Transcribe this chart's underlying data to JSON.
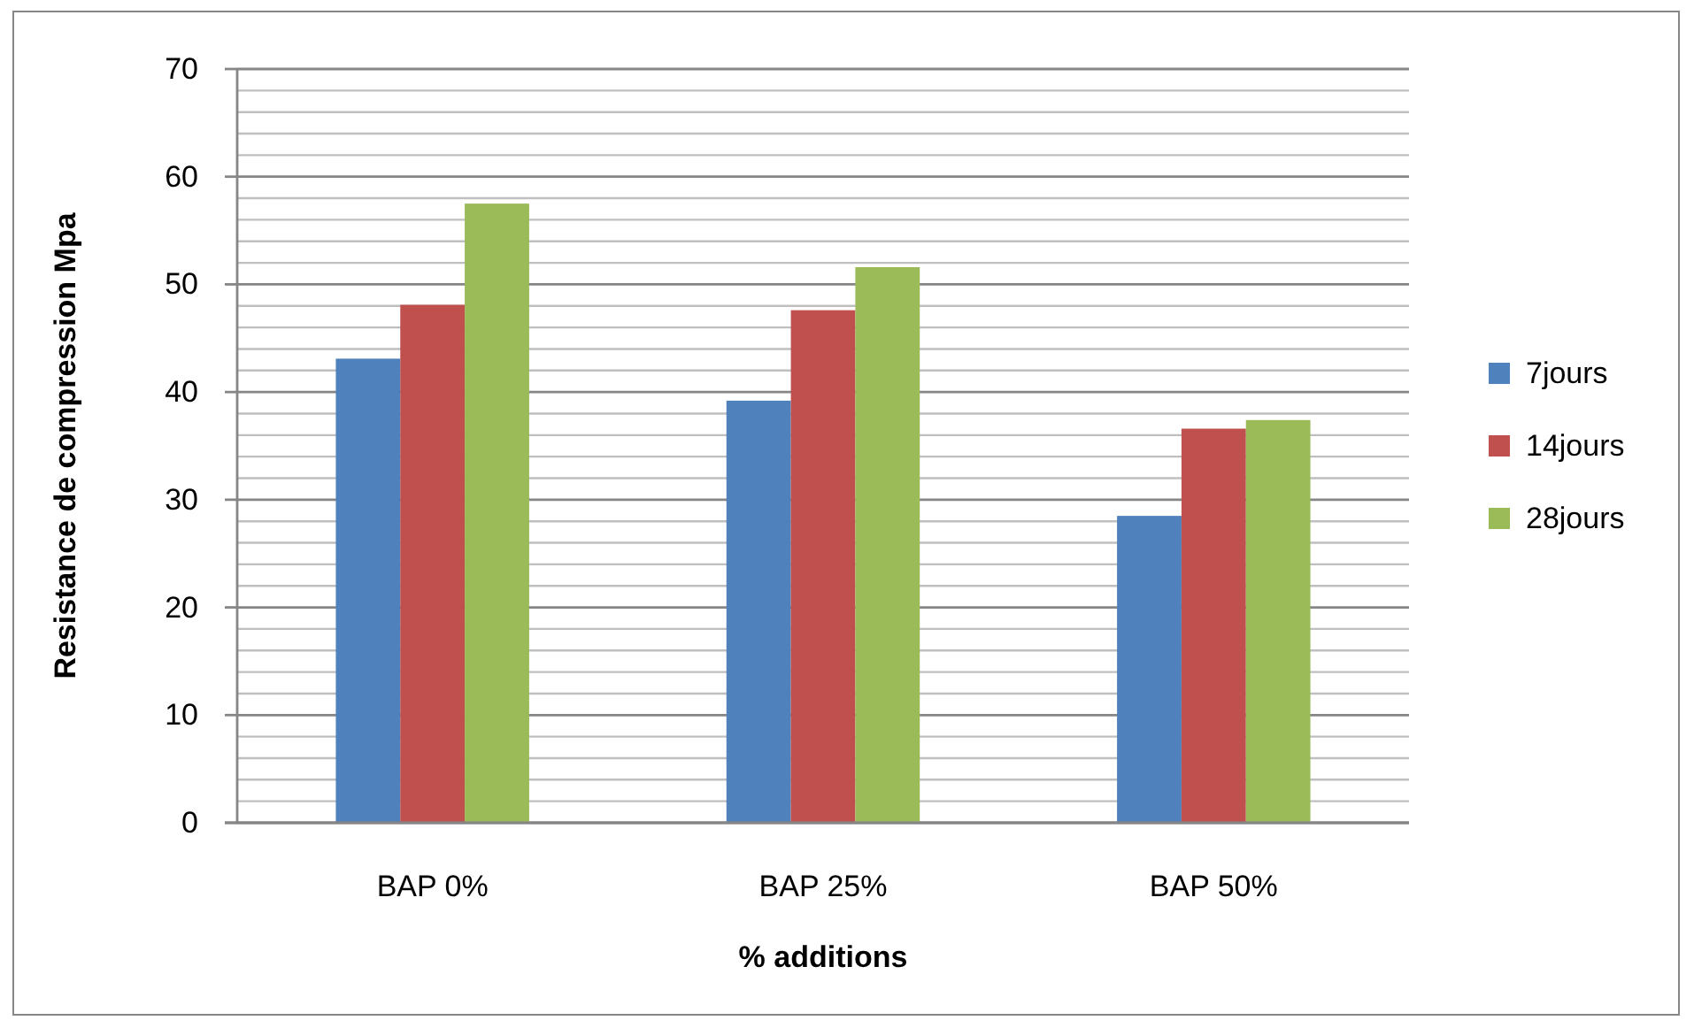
{
  "chart_data": {
    "type": "bar",
    "xlabel": "% additions",
    "ylabel": "Resistance de compression Mpa",
    "categories": [
      "BAP 0%",
      "BAP 25%",
      "BAP 50%"
    ],
    "series": [
      {
        "name": "7jours",
        "color": "#4f81bd",
        "values": [
          43.1,
          39.2,
          28.5
        ]
      },
      {
        "name": "14jours",
        "color": "#c0504d",
        "values": [
          48.1,
          47.6,
          36.6
        ]
      },
      {
        "name": "28jours",
        "color": "#9bbb59",
        "values": [
          57.5,
          51.6,
          37.4
        ]
      }
    ],
    "ylim": [
      0,
      70
    ],
    "yticks": [
      0,
      {
        "value": 2,
        "label": null
      },
      {
        "value": 4,
        "label": null
      },
      {
        "value": 6,
        "label": null
      },
      {
        "value": 8,
        "label": null
      },
      10,
      {
        "value": 12,
        "label": null
      },
      {
        "value": 14,
        "label": null
      },
      {
        "value": 16,
        "label": null
      },
      {
        "value": 18,
        "label": null
      },
      20,
      {
        "value": 22,
        "label": null
      },
      {
        "value": 24,
        "label": null
      },
      {
        "value": 26,
        "label": null
      },
      {
        "value": 28,
        "label": null
      },
      30,
      {
        "value": 32,
        "label": null
      },
      {
        "value": 34,
        "label": null
      },
      {
        "value": 36,
        "label": null
      },
      {
        "value": 38,
        "label": null
      },
      40,
      {
        "value": 42,
        "label": null
      },
      {
        "value": 44,
        "label": null
      },
      {
        "value": 46,
        "label": null
      },
      {
        "value": 48,
        "label": null
      },
      50,
      {
        "value": 52,
        "label": null
      },
      {
        "value": 54,
        "label": null
      },
      {
        "value": 56,
        "label": null
      },
      {
        "value": 58,
        "label": null
      },
      60,
      {
        "value": 62,
        "label": null
      },
      {
        "value": 64,
        "label": null
      },
      {
        "value": 66,
        "label": null
      },
      {
        "value": 68,
        "label": null
      },
      70
    ],
    "grid": "y",
    "legend": "right"
  }
}
